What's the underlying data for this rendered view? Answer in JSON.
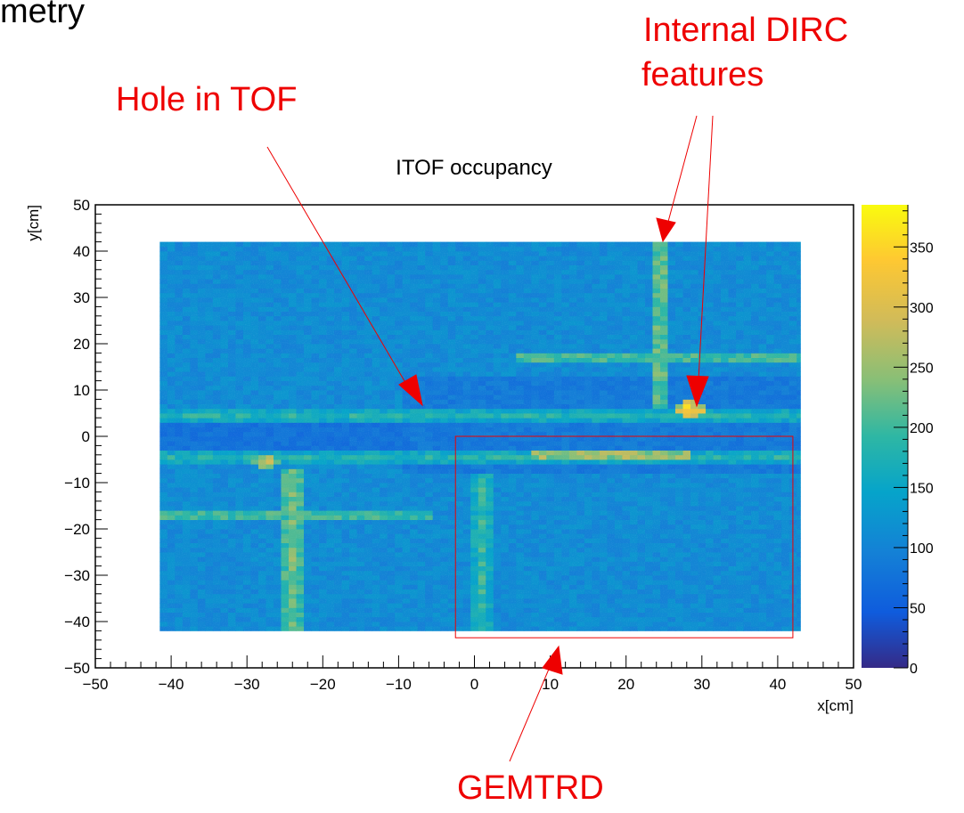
{
  "slide": {
    "title_fragment": "metry"
  },
  "annotations": {
    "hole_label": "Hole in TOF",
    "dirc_line1": "Internal DIRC",
    "dirc_line2": "features",
    "gemtrd_label": "GEMTRD"
  },
  "chart_data": {
    "type": "heatmap",
    "title": "ITOF occupancy",
    "xlabel": "x[cm]",
    "ylabel": "y[cm]",
    "xlim": [
      -50,
      50
    ],
    "ylim": [
      -50,
      50
    ],
    "zlim": [
      0,
      385
    ],
    "x_ticks": [
      -50,
      -40,
      -30,
      -20,
      -10,
      0,
      10,
      20,
      30,
      40,
      50
    ],
    "y_ticks": [
      -50,
      -40,
      -30,
      -20,
      -10,
      0,
      10,
      20,
      30,
      40,
      50
    ],
    "z_ticks": [
      0,
      50,
      100,
      150,
      200,
      250,
      300,
      350
    ],
    "colormap": "parula",
    "data_region": {
      "x": [
        -41.5,
        43
      ],
      "y": [
        -42,
        42
      ]
    },
    "background_level": 110,
    "features": [
      {
        "kind": "horizontal-band",
        "y": 4.5,
        "x": [
          -41.5,
          43
        ],
        "level": 180
      },
      {
        "kind": "horizontal-band",
        "y": -4.5,
        "x": [
          -41.5,
          43
        ],
        "level": 180
      },
      {
        "kind": "low-region",
        "x": [
          -41.5,
          -9
        ],
        "y": [
          -4,
          4
        ],
        "level": 75
      },
      {
        "kind": "low-region",
        "x": [
          -9,
          43
        ],
        "y": [
          -8,
          13
        ],
        "level": 85
      },
      {
        "kind": "vertical-band",
        "x": 24.5,
        "y": [
          6,
          42
        ],
        "level": 230
      },
      {
        "kind": "horizontal-band",
        "y": 17,
        "x": [
          6,
          43
        ],
        "level": 215
      },
      {
        "kind": "hot-spot",
        "x": 28.5,
        "y": 6,
        "level": 340
      },
      {
        "kind": "vertical-band",
        "x": -24,
        "y": [
          -42,
          -7
        ],
        "level": 230
      },
      {
        "kind": "horizontal-band",
        "y": -17,
        "x": [
          -41.5,
          -6
        ],
        "level": 210
      },
      {
        "kind": "hot-spot",
        "x": -27.5,
        "y": -5.5,
        "level": 290
      },
      {
        "kind": "vertical-band",
        "x": 1,
        "y": [
          -42,
          -8
        ],
        "level": 190
      },
      {
        "kind": "horizontal-band",
        "y": -4,
        "x": [
          8,
          28
        ],
        "level": 260
      }
    ],
    "gemtrd_box": {
      "x": [
        -2.5,
        42
      ],
      "y": [
        -43.5,
        0
      ]
    }
  },
  "colors": {
    "annotation": "#ee0000",
    "axis": "#000000",
    "box": "#ee0000"
  }
}
